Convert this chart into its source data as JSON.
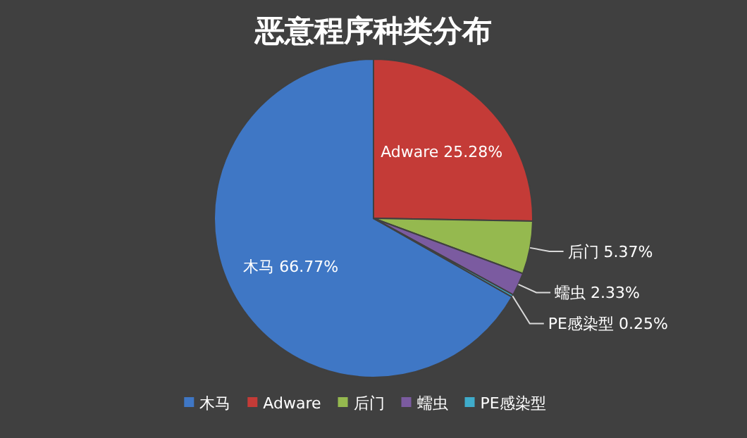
{
  "chart_data": {
    "type": "pie",
    "title": "恶意程序种类分布",
    "categories": [
      "木马",
      "Adware",
      "后门",
      "蠕虫",
      "PE感染型"
    ],
    "values": [
      66.77,
      25.28,
      5.37,
      2.33,
      0.25
    ],
    "value_labels": [
      "66.77%",
      "25.28%",
      "5.37%",
      "2.33%",
      "0.25%"
    ],
    "colors": [
      "#3f77c5",
      "#c43b37",
      "#95b94f",
      "#7b5ba0",
      "#3faccb"
    ],
    "legend": "bottom"
  }
}
